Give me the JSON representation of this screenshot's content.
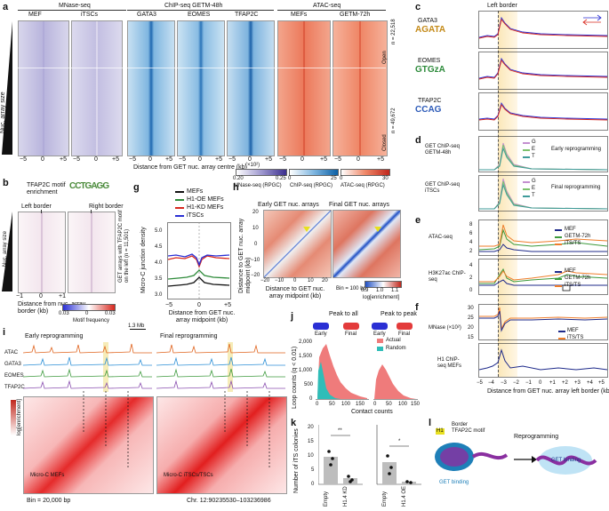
{
  "panels": {
    "a": {
      "letter": "a",
      "groups": [
        "MNase-seq",
        "ChIP-seq GETM-48h",
        "ATAC-seq"
      ],
      "columns": [
        "MEF",
        "iTSCs",
        "GATA3",
        "EOMES",
        "TFAP2C",
        "MEFs",
        "GETM-72h"
      ],
      "ylabel": "Nuc. array size",
      "row_counts": [
        "n = 22,518",
        "n = 49,672"
      ],
      "row_states": [
        "Open",
        "Closed"
      ],
      "ticks": [
        "−5",
        "0",
        "+5"
      ],
      "xlabel": "Distance from GET nuc. array centre (kb)",
      "scales": [
        {
          "exp": "(×10²)",
          "min": "0.20",
          "max": "0.25",
          "label": "MNase-seq (RPGC)",
          "colors": [
            "#ffffff",
            "#3c2f8f"
          ]
        },
        {
          "exp": "",
          "min": "0",
          "max": "25",
          "label": "ChIP-seq (RPGC)",
          "colors": [
            "#ffffff",
            "#0b5fa5"
          ]
        },
        {
          "exp": "",
          "min": "0",
          "max": "30",
          "label": "ATAC-seq (RPGC)",
          "colors": [
            "#ffffff",
            "#c0271c"
          ]
        }
      ]
    },
    "b": {
      "letter": "b",
      "motif_title": "TFAP2C motif enrichment",
      "left_border": "Left border",
      "right_border": "Right border",
      "ylabel": "Nuc. array size",
      "right_label": "GET arrays with TFAP2C motif on the left (n = 11,501)",
      "xticks": [
        "−1",
        "0",
        "+1"
      ],
      "xlabel": "Distance from nuc. array border (kb)",
      "scale_ticks": [
        "0.03",
        "0",
        "0.03"
      ],
      "scale_label": "Motif frequency"
    },
    "c": {
      "letter": "c",
      "title": "Left border",
      "tfs": [
        "GATA3",
        "EOMES",
        "TFAP2C"
      ],
      "ylabel": "Frequency",
      "yticks": [
        "0.003",
        "0.002",
        "0.001",
        "0.000"
      ]
    },
    "d": {
      "letter": "d",
      "rows": [
        "GET ChIP-seq GETM-48h",
        "GET ChIP-seq iTSCs"
      ],
      "titles": [
        "Early reprogramming",
        "Final reprogramming"
      ],
      "legend": [
        "G",
        "E",
        "T"
      ],
      "colors": [
        "#c48fd0",
        "#7cc16c",
        "#3f9b9a"
      ]
    },
    "e": {
      "letter": "e",
      "rows": [
        "ATAC-seq",
        "H3K27ac ChIP-seq"
      ],
      "legend": [
        "MEF",
        "GETM-72h",
        "iTS/TS"
      ],
      "colors": [
        "#1e2a8a",
        "#3d9a3c",
        "#ef7d2b"
      ],
      "yticks_atac": [
        "8",
        "6",
        "4",
        "2"
      ],
      "yticks_h3": [
        "4",
        "2",
        "0"
      ]
    },
    "f": {
      "letter": "f",
      "rows": [
        "MNase (×10²)",
        "H1 ChIP-seq MEFs"
      ],
      "legend": [
        "MEF",
        "iTS/TS"
      ],
      "yticks": [
        "30",
        "25",
        "20",
        "15"
      ],
      "xticks": [
        "−5",
        "−4",
        "−3",
        "−2",
        "−1",
        "0",
        "+1",
        "+2",
        "+3",
        "+4",
        "+5"
      ],
      "xlabel": "Distance from GET nuc. array left border (kb)"
    },
    "g": {
      "letter": "g",
      "legend": [
        "MEFs",
        "H1-OE MEFs",
        "H1-KD MEFs",
        "iTSCs"
      ],
      "colors": [
        "#111111",
        "#2e8b3a",
        "#d8281e",
        "#2a2fd4"
      ],
      "ylabel": "Micro-C junction density",
      "yticks": [
        "5.0",
        "4.5",
        "4.0",
        "3.5",
        "3.0"
      ],
      "xticks": [
        "−5",
        "0",
        "+5"
      ],
      "xlabel": "Distance from GET nuc. array midpoint (kb)"
    },
    "h": {
      "letter": "h",
      "titles": [
        "Early GET nuc. arrays",
        "Final GET nuc. arrays"
      ],
      "ylabel": "Distance to GET nuc. array midpoint (kb)",
      "xlabel": "Distance to GET nuc. array midpoint (kb)",
      "ticks": [
        "20",
        "10",
        "0",
        "−10",
        "−20"
      ],
      "xticks": [
        "−20",
        "−10",
        "0",
        "10",
        "20"
      ],
      "bin": "Bin = 100 bp",
      "scale_ticks": [
        "0.9",
        "1.0",
        "1.1"
      ],
      "scale_label": "log[enrichment]"
    },
    "i": {
      "letter": "i",
      "titles": [
        "Early reprogramming",
        "Final reprogramming"
      ],
      "scalebar": "1.3 Mb",
      "tracks": [
        "ATAC",
        "GATA3",
        "EOMES",
        "TFAP2C"
      ],
      "track_colors": [
        "#e0641e",
        "#2c8fd6",
        "#3f9b3f",
        "#8a4fb0"
      ],
      "scale_label": "log[enrichment]",
      "map_labels": [
        "Micro-C MEFs",
        "Micro-C iTSCs/TSCs"
      ],
      "bin": "Bin = 20,000 bp",
      "chr": "Chr. 12:90235530–103236986"
    },
    "j": {
      "letter": "j",
      "titles": [
        "Peak to all",
        "Peak to peak"
      ],
      "early": "Early",
      "final": "Final",
      "legend": [
        "Actual",
        "Random"
      ],
      "colors": [
        "#ef7b7b",
        "#2fbdb8"
      ],
      "ylabel": "Loop counts (q < 0.01)",
      "yticks": [
        "2,000",
        "1,500",
        "1,000",
        "500",
        "0"
      ],
      "xticks": [
        "0",
        "50",
        "100",
        "150"
      ],
      "xlabel": "Contact counts"
    },
    "k": {
      "letter": "k",
      "ylabel": "Number of iTS colonies",
      "yticks": [
        "20",
        "15",
        "10",
        "5",
        "0"
      ],
      "groups": [
        "Empty",
        "H1.4 KD",
        "Empty",
        "H1.4 OE"
      ],
      "sig": [
        "**",
        "*"
      ]
    },
    "l": {
      "letter": "l",
      "border": "Border",
      "motif": "TFAP2C motif",
      "h1": "H1",
      "reprogramming": "Reprogramming",
      "get_binding_left": "GET binding",
      "get_binding_right": "GET binding"
    }
  }
}
